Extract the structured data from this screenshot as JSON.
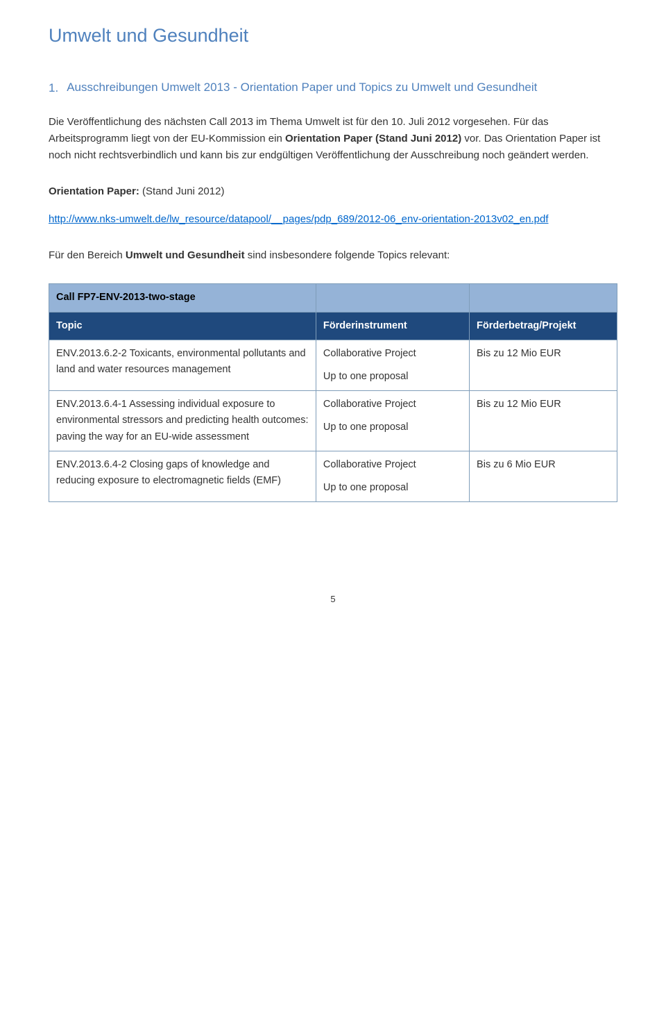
{
  "title": "Umwelt und Gesundheit",
  "section": {
    "number": "1.",
    "heading": "Ausschreibungen Umwelt 2013 - Orientation Paper und Topics zu Umwelt und Gesundheit"
  },
  "para1_prefix": "Die Veröffentlichung des nächsten Call 2013 im Thema Umwelt ist für den 10. Juli 2012 vorgesehen. Für das Arbeitsprogramm liegt von der EU-Kommission ein ",
  "para1_bold": "Orientation Paper (Stand Juni 2012)",
  "para1_suffix": " vor. Das Orientation Paper ist noch nicht rechtsverbindlich und kann bis zur endgültigen Veröffentlichung der Ausschreibung noch geändert werden.",
  "para2_bold": "Orientation Paper:",
  "para2_suffix": " (Stand Juni 2012)",
  "link1_text": "http://www.nks-umwelt.de/lw_resource/datapool/__pages/pdp_689/2012-06_env-orientation-2013v02_en.pdf",
  "para3_prefix": "Für den Bereich ",
  "para3_bold": "Umwelt und Gesundheit",
  "para3_suffix": " sind insbesondere folgende Topics relevant:",
  "table": {
    "call_header": "Call FP7-ENV-2013-two-stage",
    "columns": {
      "c1": "Topic",
      "c2": "Förderinstrument",
      "c3": "Förderbetrag/Projekt"
    },
    "rows": [
      {
        "topic": "ENV.2013.6.2-2 Toxicants, environmental pollutants and land and water resources management",
        "instrument": "Collaborative Project",
        "instrument_sub": "Up to one proposal",
        "amount": "Bis zu 12 Mio EUR"
      },
      {
        "topic": "ENV.2013.6.4-1 Assessing individual exposure to environmental stressors and predicting health outcomes: paving the way for an EU-wide assessment",
        "instrument": "Collaborative Project",
        "instrument_sub": "Up to one proposal",
        "amount": "Bis zu 12 Mio EUR"
      },
      {
        "topic": "ENV.2013.6.4-2 Closing gaps of knowledge and reducing exposure to electromagnetic fields (EMF)",
        "instrument": "Collaborative Project",
        "instrument_sub": "Up to one proposal",
        "amount": "Bis zu 6 Mio EUR"
      }
    ]
  },
  "page_number": "5"
}
